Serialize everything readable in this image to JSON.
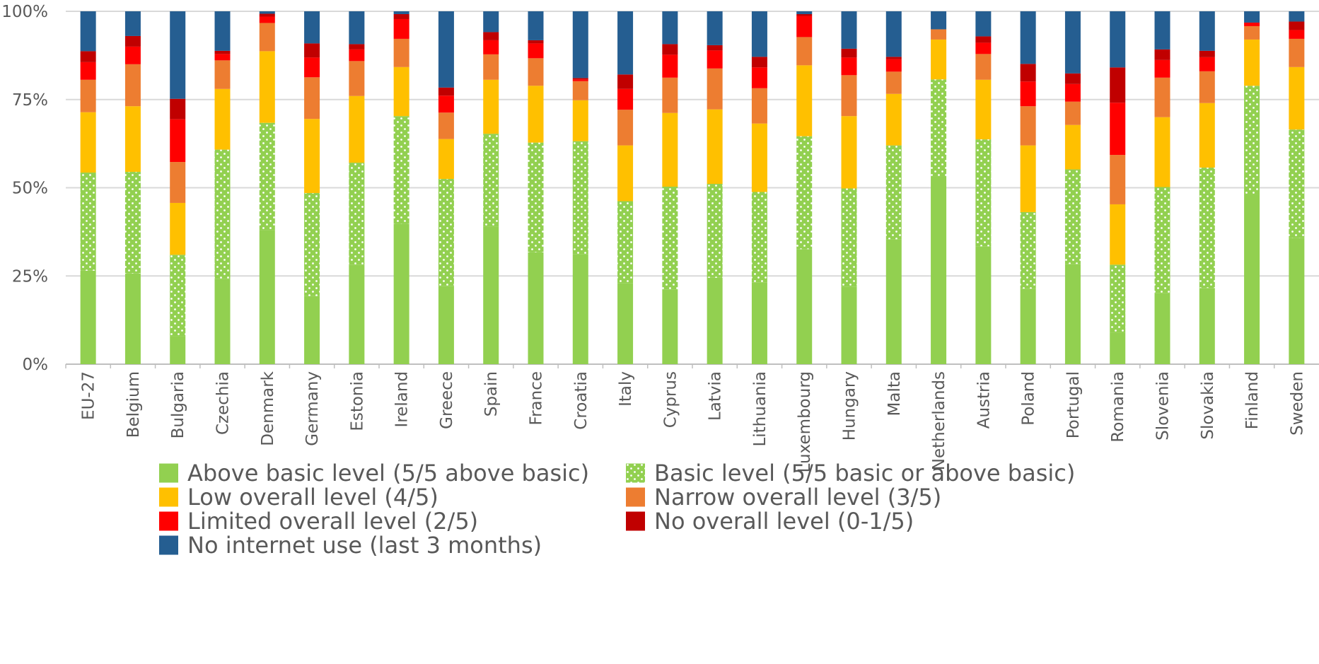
{
  "chart_data": {
    "type": "bar",
    "stacked": true,
    "percent": true,
    "title": "",
    "xlabel": "",
    "ylabel": "",
    "ylim": [
      0,
      100
    ],
    "y_ticks": [
      "0%",
      "25%",
      "50%",
      "75%",
      "100%"
    ],
    "grid": true,
    "legend_position": "bottom",
    "categories": [
      "EU-27",
      "Belgium",
      "Bulgaria",
      "Czechia",
      "Denmark",
      "Germany",
      "Estonia",
      "Ireland",
      "Greece",
      "Spain",
      "France",
      "Croatia",
      "Italy",
      "Cyprus",
      "Latvia",
      "Lithuania",
      "Luxembourg",
      "Hungary",
      "Malta",
      "Netherlands",
      "Austria",
      "Poland",
      "Portugal",
      "Romania",
      "Slovenia",
      "Slovakia",
      "Finland",
      "Sweden"
    ],
    "series": [
      {
        "name": "Above basic level (5/5 above basic)",
        "color": "#92d050",
        "pattern": "solid",
        "values": [
          26.5,
          25.7,
          8.0,
          24.2,
          37.9,
          19.3,
          28.2,
          39.8,
          22.1,
          39.0,
          31.7,
          31.2,
          22.9,
          21.1,
          24.5,
          23.1,
          32.6,
          21.9,
          35.4,
          53.2,
          33.4,
          21.4,
          28.4,
          9.0,
          20.2,
          21.6,
          47.9,
          35.8
        ]
      },
      {
        "name": "Basic level (5/5 basic or above basic)",
        "color": "#92d050",
        "pattern": "dots",
        "values": [
          27.8,
          28.8,
          23.0,
          36.6,
          30.5,
          29.2,
          28.9,
          30.5,
          30.4,
          26.3,
          31.1,
          32.0,
          23.3,
          29.2,
          26.6,
          25.7,
          32.0,
          27.9,
          26.6,
          27.5,
          30.3,
          21.7,
          26.8,
          19.2,
          30.0,
          34.1,
          31.0,
          30.7
        ]
      },
      {
        "name": "Low overall level (4/5)",
        "color": "#ffc000",
        "pattern": "solid",
        "values": [
          17.1,
          18.6,
          14.7,
          17.2,
          20.3,
          21.0,
          18.9,
          13.9,
          11.3,
          15.3,
          16.1,
          11.6,
          15.8,
          20.9,
          21.1,
          19.4,
          20.1,
          20.5,
          14.6,
          11.3,
          16.9,
          18.9,
          12.6,
          17.1,
          19.8,
          18.3,
          13.1,
          17.7
        ]
      },
      {
        "name": "Narrow overall level (3/5)",
        "color": "#ed7d31",
        "pattern": "solid",
        "values": [
          9.2,
          11.9,
          11.6,
          8.1,
          8.0,
          11.8,
          9.9,
          8.0,
          7.5,
          7.2,
          7.8,
          5.4,
          10.1,
          10.0,
          11.6,
          10.0,
          8.0,
          11.6,
          6.3,
          2.9,
          7.3,
          11.1,
          6.6,
          14.0,
          11.2,
          9.0,
          3.8,
          8.0
        ]
      },
      {
        "name": "Limited overall level (2/5)",
        "color": "#ff0000",
        "pattern": "solid",
        "values": [
          5.0,
          5.0,
          12.1,
          1.8,
          1.8,
          5.6,
          3.3,
          5.6,
          4.8,
          4.0,
          4.2,
          0.5,
          5.9,
          6.5,
          5.1,
          5.9,
          6.0,
          5.0,
          3.5,
          0.0,
          3.2,
          7.0,
          5.0,
          14.8,
          5.0,
          4.0,
          1.0,
          2.5
        ]
      },
      {
        "name": "No overall level (0-1/5)",
        "color": "#c00000",
        "pattern": "solid",
        "values": [
          3.1,
          3.0,
          5.8,
          0.9,
          0.8,
          4.0,
          1.5,
          1.4,
          2.3,
          2.3,
          0.9,
          0.4,
          4.1,
          3.0,
          1.5,
          3.0,
          0.5,
          2.5,
          0.7,
          0.0,
          1.8,
          5.0,
          3.0,
          10.0,
          3.0,
          1.8,
          0.0,
          2.4
        ]
      },
      {
        "name": "No internet use (last 3 months)",
        "color": "#255e91",
        "pattern": "solid",
        "values": [
          11.3,
          7.0,
          24.8,
          11.2,
          0.7,
          9.1,
          9.3,
          0.8,
          21.6,
          5.9,
          8.2,
          18.9,
          17.9,
          9.3,
          9.6,
          12.9,
          0.8,
          10.6,
          12.9,
          5.1,
          7.1,
          14.9,
          17.6,
          15.9,
          10.8,
          11.2,
          3.2,
          2.9
        ]
      }
    ]
  }
}
